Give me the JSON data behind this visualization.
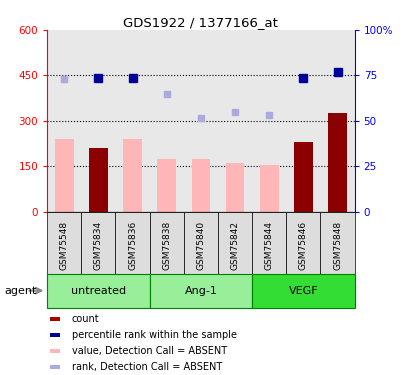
{
  "title": "GDS1922 / 1377166_at",
  "samples": [
    "GSM75548",
    "GSM75834",
    "GSM75836",
    "GSM75838",
    "GSM75840",
    "GSM75842",
    "GSM75844",
    "GSM75846",
    "GSM75848"
  ],
  "group_labels": [
    "untreated",
    "Ang-1",
    "VEGF"
  ],
  "group_ranges": [
    [
      0,
      2
    ],
    [
      3,
      5
    ],
    [
      6,
      8
    ]
  ],
  "group_colors": [
    "#aaffaa",
    "#aaffaa",
    "#55ee55"
  ],
  "bar_values": [
    240,
    210,
    240,
    175,
    175,
    162,
    155,
    230,
    325
  ],
  "bar_absent": [
    true,
    false,
    true,
    true,
    true,
    true,
    true,
    false,
    false
  ],
  "bar_color_absent": "#FFB6B6",
  "bar_color_present": "#8B0000",
  "dot_values": [
    438,
    440,
    440,
    390,
    310,
    330,
    318,
    440,
    460
  ],
  "dot_absent": [
    true,
    false,
    false,
    true,
    true,
    true,
    true,
    false,
    false
  ],
  "dot_color_absent": "#AAAADD",
  "dot_color_present": "#000099",
  "ylim_left": [
    0,
    600
  ],
  "ylim_right": [
    0,
    100
  ],
  "yticks_left": [
    0,
    150,
    300,
    450,
    600
  ],
  "yticks_right": [
    0,
    25,
    50,
    75,
    100
  ],
  "ytick_labels_left": [
    "0",
    "150",
    "300",
    "450",
    "600"
  ],
  "ytick_labels_right": [
    "0",
    "25",
    "50",
    "75",
    "100%"
  ],
  "dotted_lines": [
    150,
    300,
    450
  ],
  "bar_width": 0.55,
  "agent_label": "agent",
  "legend_items": [
    {
      "color": "#AA0000",
      "label": "count"
    },
    {
      "color": "#000099",
      "label": "percentile rank within the sample"
    },
    {
      "color": "#FFB6B6",
      "label": "value, Detection Call = ABSENT"
    },
    {
      "color": "#AAAADD",
      "label": "rank, Detection Call = ABSENT"
    }
  ]
}
